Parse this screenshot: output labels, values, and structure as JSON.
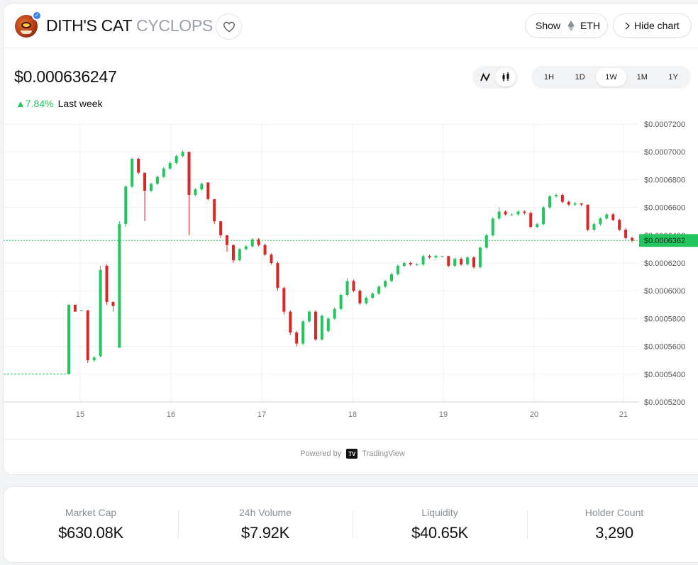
{
  "header": {
    "token_name": "DITH'S CAT",
    "ticker": "CYCLOPS",
    "show_label": "Show",
    "network": "ETH",
    "hide_chart_label": "Hide chart"
  },
  "price": {
    "current": "$0.000636247",
    "change_pct": "7.84%",
    "change_period": "Last week"
  },
  "time_ranges": [
    "1H",
    "1D",
    "1W",
    "1M",
    "1Y"
  ],
  "selected_range": "1W",
  "chart_data": {
    "type": "candlestick",
    "x_ticks": [
      "15",
      "16",
      "17",
      "18",
      "19",
      "20",
      "21"
    ],
    "y_ticks": [
      "$0.0007200",
      "$0.0007000",
      "$0.0006800",
      "$0.0006600",
      "$0.0006400",
      "$0.0006200",
      "$0.0006000",
      "$0.0005800",
      "$0.0005600",
      "$0.0005400",
      "$0.0005200"
    ],
    "ylim": [
      0.00052,
      0.00072
    ],
    "current_price_label": "$0.0006362",
    "current_price": 0.0006362,
    "colors": {
      "up": "#22c55e",
      "down": "#dc2626",
      "grid": "#eef0f2"
    },
    "candles": [
      [
        0.00054,
        0.00059,
        0.00059,
        0.00054
      ],
      [
        0.00059,
        0.000585,
        0.00059,
        0.000585
      ],
      [
        0.000586,
        0.000586,
        0.000586,
        0.000586
      ],
      [
        0.000586,
        0.00055,
        0.000586,
        0.000548
      ],
      [
        0.00055,
        0.000552,
        0.000553,
        0.000549
      ],
      [
        0.000553,
        0.000615,
        0.000618,
        0.000552
      ],
      [
        0.000618,
        0.000592,
        0.000619,
        0.00059
      ],
      [
        0.000592,
        0.000589,
        0.000592,
        0.000585
      ],
      [
        0.000559,
        0.000648,
        0.00065,
        0.000559
      ],
      [
        0.000648,
        0.000675,
        0.000676,
        0.000646
      ],
      [
        0.000675,
        0.000695,
        0.000696,
        0.000674
      ],
      [
        0.000695,
        0.000685,
        0.000696,
        0.000684
      ],
      [
        0.000685,
        0.000672,
        0.000685,
        0.00065
      ],
      [
        0.000672,
        0.000677,
        0.000678,
        0.000671
      ],
      [
        0.000677,
        0.000682,
        0.000683,
        0.000676
      ],
      [
        0.000682,
        0.000688,
        0.000689,
        0.000681
      ],
      [
        0.000688,
        0.000692,
        0.000693,
        0.000687
      ],
      [
        0.000692,
        0.000697,
        0.000698,
        0.000691
      ],
      [
        0.000697,
        0.0007,
        0.000701,
        0.000696
      ],
      [
        0.0007,
        0.000669,
        0.0007,
        0.00064
      ],
      [
        0.000669,
        0.000673,
        0.000674,
        0.000668
      ],
      [
        0.000673,
        0.000677,
        0.000678,
        0.000672
      ],
      [
        0.000678,
        0.000666,
        0.000678,
        0.000665
      ],
      [
        0.000666,
        0.00065,
        0.000666,
        0.000648
      ],
      [
        0.00065,
        0.00064,
        0.00065,
        0.000638
      ],
      [
        0.00064,
        0.000633,
        0.00064,
        0.000628
      ],
      [
        0.000633,
        0.000622,
        0.000633,
        0.00062
      ],
      [
        0.000622,
        0.00063,
        0.000631,
        0.000621
      ],
      [
        0.00063,
        0.000632,
        0.000633,
        0.000629
      ],
      [
        0.000632,
        0.000637,
        0.000638,
        0.000631
      ],
      [
        0.000637,
        0.000633,
        0.000638,
        0.000632
      ],
      [
        0.000633,
        0.000626,
        0.000634,
        0.000625
      ],
      [
        0.000626,
        0.00062,
        0.000627,
        0.000619
      ],
      [
        0.00062,
        0.000602,
        0.000621,
        0.0006
      ],
      [
        0.000602,
        0.000585,
        0.000603,
        0.000583
      ],
      [
        0.000585,
        0.00057,
        0.000586,
        0.000568
      ],
      [
        0.00057,
        0.000562,
        0.000571,
        0.00056
      ],
      [
        0.000562,
        0.000578,
        0.000579,
        0.000561
      ],
      [
        0.000578,
        0.000585,
        0.000586,
        0.000577
      ],
      [
        0.000585,
        0.000565,
        0.000586,
        0.000564
      ],
      [
        0.000565,
        0.000582,
        0.000583,
        0.000564
      ],
      [
        0.000571,
        0.00058,
        0.000581,
        0.00057
      ],
      [
        0.00058,
        0.000587,
        0.000588,
        0.000579
      ],
      [
        0.000587,
        0.000597,
        0.000598,
        0.000586
      ],
      [
        0.000597,
        0.000607,
        0.000609,
        0.000596
      ],
      [
        0.000607,
        0.0006,
        0.000608,
        0.000599
      ],
      [
        0.0006,
        0.000591,
        0.000601,
        0.00059
      ],
      [
        0.000591,
        0.000595,
        0.000596,
        0.00059
      ],
      [
        0.000595,
        0.000598,
        0.000599,
        0.000594
      ],
      [
        0.000598,
        0.000603,
        0.000604,
        0.000597
      ],
      [
        0.000603,
        0.000607,
        0.000608,
        0.000602
      ],
      [
        0.000607,
        0.000612,
        0.000613,
        0.000606
      ],
      [
        0.000612,
        0.000618,
        0.000619,
        0.000611
      ],
      [
        0.000618,
        0.00062,
        0.000621,
        0.000617
      ],
      [
        0.00062,
        0.000619,
        0.000621,
        0.000618
      ],
      [
        0.000619,
        0.000619,
        0.00062,
        0.000618
      ],
      [
        0.000619,
        0.000625,
        0.000626,
        0.000618
      ],
      [
        0.000625,
        0.000624,
        0.000626,
        0.000623
      ],
      [
        0.000624,
        0.000625,
        0.000626,
        0.000623
      ],
      [
        0.000625,
        0.000625,
        0.000625,
        0.000625
      ],
      [
        0.000625,
        0.000618,
        0.000625,
        0.000617
      ],
      [
        0.000618,
        0.000623,
        0.000624,
        0.000617
      ],
      [
        0.000623,
        0.000619,
        0.000624,
        0.000618
      ],
      [
        0.000619,
        0.000624,
        0.000625,
        0.000618
      ],
      [
        0.000624,
        0.000617,
        0.000625,
        0.000616
      ],
      [
        0.000617,
        0.000631,
        0.000632,
        0.000616
      ],
      [
        0.000631,
        0.00064,
        0.000641,
        0.00063
      ],
      [
        0.00064,
        0.000652,
        0.000653,
        0.000639
      ],
      [
        0.000652,
        0.000657,
        0.00066,
        0.000651
      ],
      [
        0.000657,
        0.000655,
        0.000658,
        0.000654
      ],
      [
        0.000655,
        0.000655,
        0.000656,
        0.000654
      ],
      [
        0.000655,
        0.000657,
        0.000658,
        0.000654
      ],
      [
        0.000657,
        0.000656,
        0.000658,
        0.000655
      ],
      [
        0.000656,
        0.000646,
        0.000657,
        0.000645
      ],
      [
        0.000646,
        0.000648,
        0.000649,
        0.000645
      ],
      [
        0.000648,
        0.00066,
        0.000661,
        0.000647
      ],
      [
        0.00066,
        0.000668,
        0.000669,
        0.000659
      ],
      [
        0.000668,
        0.000669,
        0.00067,
        0.000667
      ],
      [
        0.000669,
        0.000664,
        0.00067,
        0.000663
      ],
      [
        0.000664,
        0.000662,
        0.000665,
        0.000661
      ],
      [
        0.000662,
        0.000663,
        0.000664,
        0.000661
      ],
      [
        0.000663,
        0.000662,
        0.000663,
        0.000661
      ],
      [
        0.000662,
        0.000644,
        0.000662,
        0.000643
      ],
      [
        0.000644,
        0.000648,
        0.000649,
        0.000643
      ],
      [
        0.000648,
        0.000652,
        0.000653,
        0.000647
      ],
      [
        0.000652,
        0.000655,
        0.000656,
        0.000651
      ],
      [
        0.000655,
        0.000651,
        0.000656,
        0.00065
      ],
      [
        0.000651,
        0.000644,
        0.000652,
        0.000643
      ],
      [
        0.000644,
        0.000638,
        0.000645,
        0.000637
      ],
      [
        0.000638,
        0.000636,
        0.000639,
        0.000635
      ]
    ]
  },
  "powered_by": "Powered by",
  "tradingview": "TradingView",
  "stats": [
    {
      "label": "Market Cap",
      "value": "$630.08K"
    },
    {
      "label": "24h Volume",
      "value": "$7.92K"
    },
    {
      "label": "Liquidity",
      "value": "$40.65K"
    },
    {
      "label": "Holder Count",
      "value": "3,290"
    }
  ]
}
